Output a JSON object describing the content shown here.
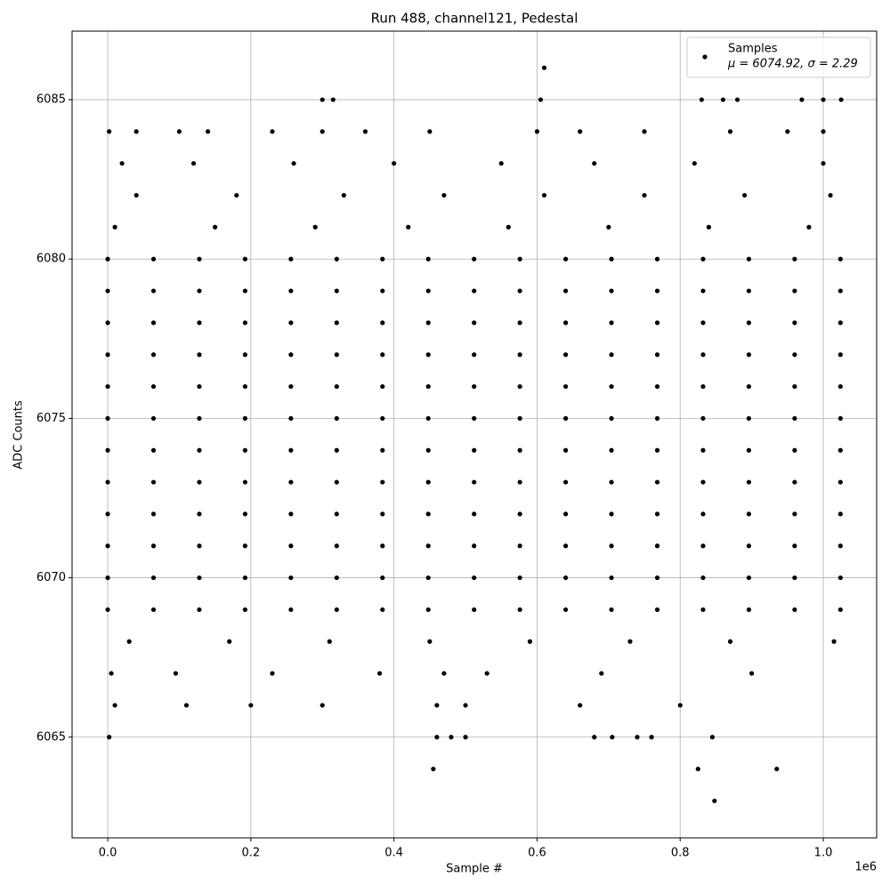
{
  "chart_data": {
    "type": "scatter",
    "title": "Run 488, channel121, Pedestal",
    "xlabel": "Sample #",
    "ylabel": "ADC Counts",
    "x_offset_label": "1e6",
    "xlim": [
      -49800,
      1074600
    ],
    "ylim": [
      6061.84,
      6087.15
    ],
    "xticks": [
      {
        "value": 0,
        "label": "0.0"
      },
      {
        "value": 200000,
        "label": "0.2"
      },
      {
        "value": 400000,
        "label": "0.4"
      },
      {
        "value": 600000,
        "label": "0.6"
      },
      {
        "value": 800000,
        "label": "0.8"
      },
      {
        "value": 1000000,
        "label": "1.0"
      }
    ],
    "yticks": [
      6065,
      6070,
      6075,
      6080,
      6085
    ],
    "grid": true,
    "legend": "upper right",
    "legend_note": "μ = 6074.92, σ = 2.29",
    "series": [
      {
        "name": "Samples",
        "color": "#000000",
        "x": [
          0,
          64000,
          128000,
          192000,
          256000,
          320000,
          384000,
          448000,
          512000,
          576000,
          640000,
          704000,
          768000,
          832000,
          896000,
          960000,
          1024000,
          0,
          64000,
          128000,
          192000,
          256000,
          320000,
          384000,
          448000,
          512000,
          576000,
          640000,
          704000,
          768000,
          832000,
          896000,
          960000,
          1024000,
          0,
          64000,
          128000,
          192000,
          256000,
          320000,
          384000,
          448000,
          512000,
          576000,
          640000,
          704000,
          768000,
          832000,
          896000,
          960000,
          1024000,
          0,
          64000,
          128000,
          192000,
          256000,
          320000,
          384000,
          448000,
          512000,
          576000,
          640000,
          704000,
          768000,
          832000,
          896000,
          960000,
          1024000,
          0,
          64000,
          128000,
          192000,
          256000,
          320000,
          384000,
          448000,
          512000,
          576000,
          640000,
          704000,
          768000,
          832000,
          896000,
          960000,
          1024000,
          0,
          64000,
          128000,
          192000,
          256000,
          320000,
          384000,
          448000,
          512000,
          576000,
          640000,
          704000,
          768000,
          832000,
          896000,
          960000,
          1024000,
          0,
          64000,
          128000,
          192000,
          256000,
          320000,
          384000,
          448000,
          512000,
          576000,
          640000,
          704000,
          768000,
          832000,
          896000,
          960000,
          1024000,
          0,
          64000,
          128000,
          192000,
          256000,
          320000,
          384000,
          448000,
          512000,
          576000,
          640000,
          704000,
          768000,
          832000,
          896000,
          960000,
          1024000,
          0,
          64000,
          128000,
          192000,
          256000,
          320000,
          384000,
          448000,
          512000,
          576000,
          640000,
          704000,
          768000,
          832000,
          896000,
          960000,
          1024000,
          0,
          64000,
          128000,
          192000,
          256000,
          320000,
          384000,
          448000,
          512000,
          576000,
          640000,
          704000,
          768000,
          832000,
          896000,
          960000,
          1024000,
          0,
          64000,
          128000,
          192000,
          256000,
          320000,
          384000,
          448000,
          512000,
          576000,
          640000,
          704000,
          768000,
          832000,
          896000,
          960000,
          1024000,
          0,
          64000,
          128000,
          192000,
          256000,
          320000,
          384000,
          448000,
          512000,
          576000,
          640000,
          704000,
          768000,
          832000,
          896000,
          960000,
          1024000,
          10000,
          150000,
          290000,
          420000,
          560000,
          700000,
          840000,
          980000,
          40000,
          180000,
          330000,
          470000,
          610000,
          750000,
          890000,
          1010000,
          20000,
          120000,
          260000,
          400000,
          550000,
          680000,
          820000,
          1000000,
          30000,
          170000,
          310000,
          450000,
          590000,
          730000,
          870000,
          1015000,
          5000,
          95000,
          230000,
          380000,
          470000,
          530000,
          690000,
          900000,
          10000,
          110000,
          200000,
          300000,
          460000,
          500000,
          660000,
          800000,
          2000,
          40000,
          100000,
          140000,
          230000,
          300000,
          360000,
          450000,
          600000,
          660000,
          750000,
          870000,
          950000,
          1000000,
          300000,
          315000,
          605000,
          830000,
          860000,
          880000,
          970000,
          1000000,
          1025000,
          610000,
          2000,
          460000,
          480000,
          500000,
          680000,
          705000,
          740000,
          760000,
          845000,
          455000,
          825000,
          935000,
          848000
        ],
        "values": [
          6069,
          6069,
          6069,
          6069,
          6069,
          6069,
          6069,
          6069,
          6069,
          6069,
          6069,
          6069,
          6069,
          6069,
          6069,
          6069,
          6069,
          6070,
          6070,
          6070,
          6070,
          6070,
          6070,
          6070,
          6070,
          6070,
          6070,
          6070,
          6070,
          6070,
          6070,
          6070,
          6070,
          6070,
          6071,
          6071,
          6071,
          6071,
          6071,
          6071,
          6071,
          6071,
          6071,
          6071,
          6071,
          6071,
          6071,
          6071,
          6071,
          6071,
          6071,
          6072,
          6072,
          6072,
          6072,
          6072,
          6072,
          6072,
          6072,
          6072,
          6072,
          6072,
          6072,
          6072,
          6072,
          6072,
          6072,
          6072,
          6073,
          6073,
          6073,
          6073,
          6073,
          6073,
          6073,
          6073,
          6073,
          6073,
          6073,
          6073,
          6073,
          6073,
          6073,
          6073,
          6073,
          6074,
          6074,
          6074,
          6074,
          6074,
          6074,
          6074,
          6074,
          6074,
          6074,
          6074,
          6074,
          6074,
          6074,
          6074,
          6074,
          6074,
          6075,
          6075,
          6075,
          6075,
          6075,
          6075,
          6075,
          6075,
          6075,
          6075,
          6075,
          6075,
          6075,
          6075,
          6075,
          6075,
          6075,
          6076,
          6076,
          6076,
          6076,
          6076,
          6076,
          6076,
          6076,
          6076,
          6076,
          6076,
          6076,
          6076,
          6076,
          6076,
          6076,
          6076,
          6077,
          6077,
          6077,
          6077,
          6077,
          6077,
          6077,
          6077,
          6077,
          6077,
          6077,
          6077,
          6077,
          6077,
          6077,
          6077,
          6077,
          6078,
          6078,
          6078,
          6078,
          6078,
          6078,
          6078,
          6078,
          6078,
          6078,
          6078,
          6078,
          6078,
          6078,
          6078,
          6078,
          6078,
          6079,
          6079,
          6079,
          6079,
          6079,
          6079,
          6079,
          6079,
          6079,
          6079,
          6079,
          6079,
          6079,
          6079,
          6079,
          6079,
          6079,
          6080,
          6080,
          6080,
          6080,
          6080,
          6080,
          6080,
          6080,
          6080,
          6080,
          6080,
          6080,
          6080,
          6080,
          6080,
          6080,
          6080,
          6081,
          6081,
          6081,
          6081,
          6081,
          6081,
          6081,
          6081,
          6082,
          6082,
          6082,
          6082,
          6082,
          6082,
          6082,
          6082,
          6083,
          6083,
          6083,
          6083,
          6083,
          6083,
          6083,
          6083,
          6068,
          6068,
          6068,
          6068,
          6068,
          6068,
          6068,
          6068,
          6067,
          6067,
          6067,
          6067,
          6067,
          6067,
          6067,
          6067,
          6066,
          6066,
          6066,
          6066,
          6066,
          6066,
          6066,
          6066,
          6084,
          6084,
          6084,
          6084,
          6084,
          6084,
          6084,
          6084,
          6084,
          6084,
          6084,
          6084,
          6084,
          6084,
          6085,
          6085,
          6085,
          6085,
          6085,
          6085,
          6085,
          6085,
          6085,
          6086,
          6065,
          6065,
          6065,
          6065,
          6065,
          6065,
          6065,
          6065,
          6065,
          6064,
          6064,
          6064,
          6063
        ]
      }
    ]
  }
}
